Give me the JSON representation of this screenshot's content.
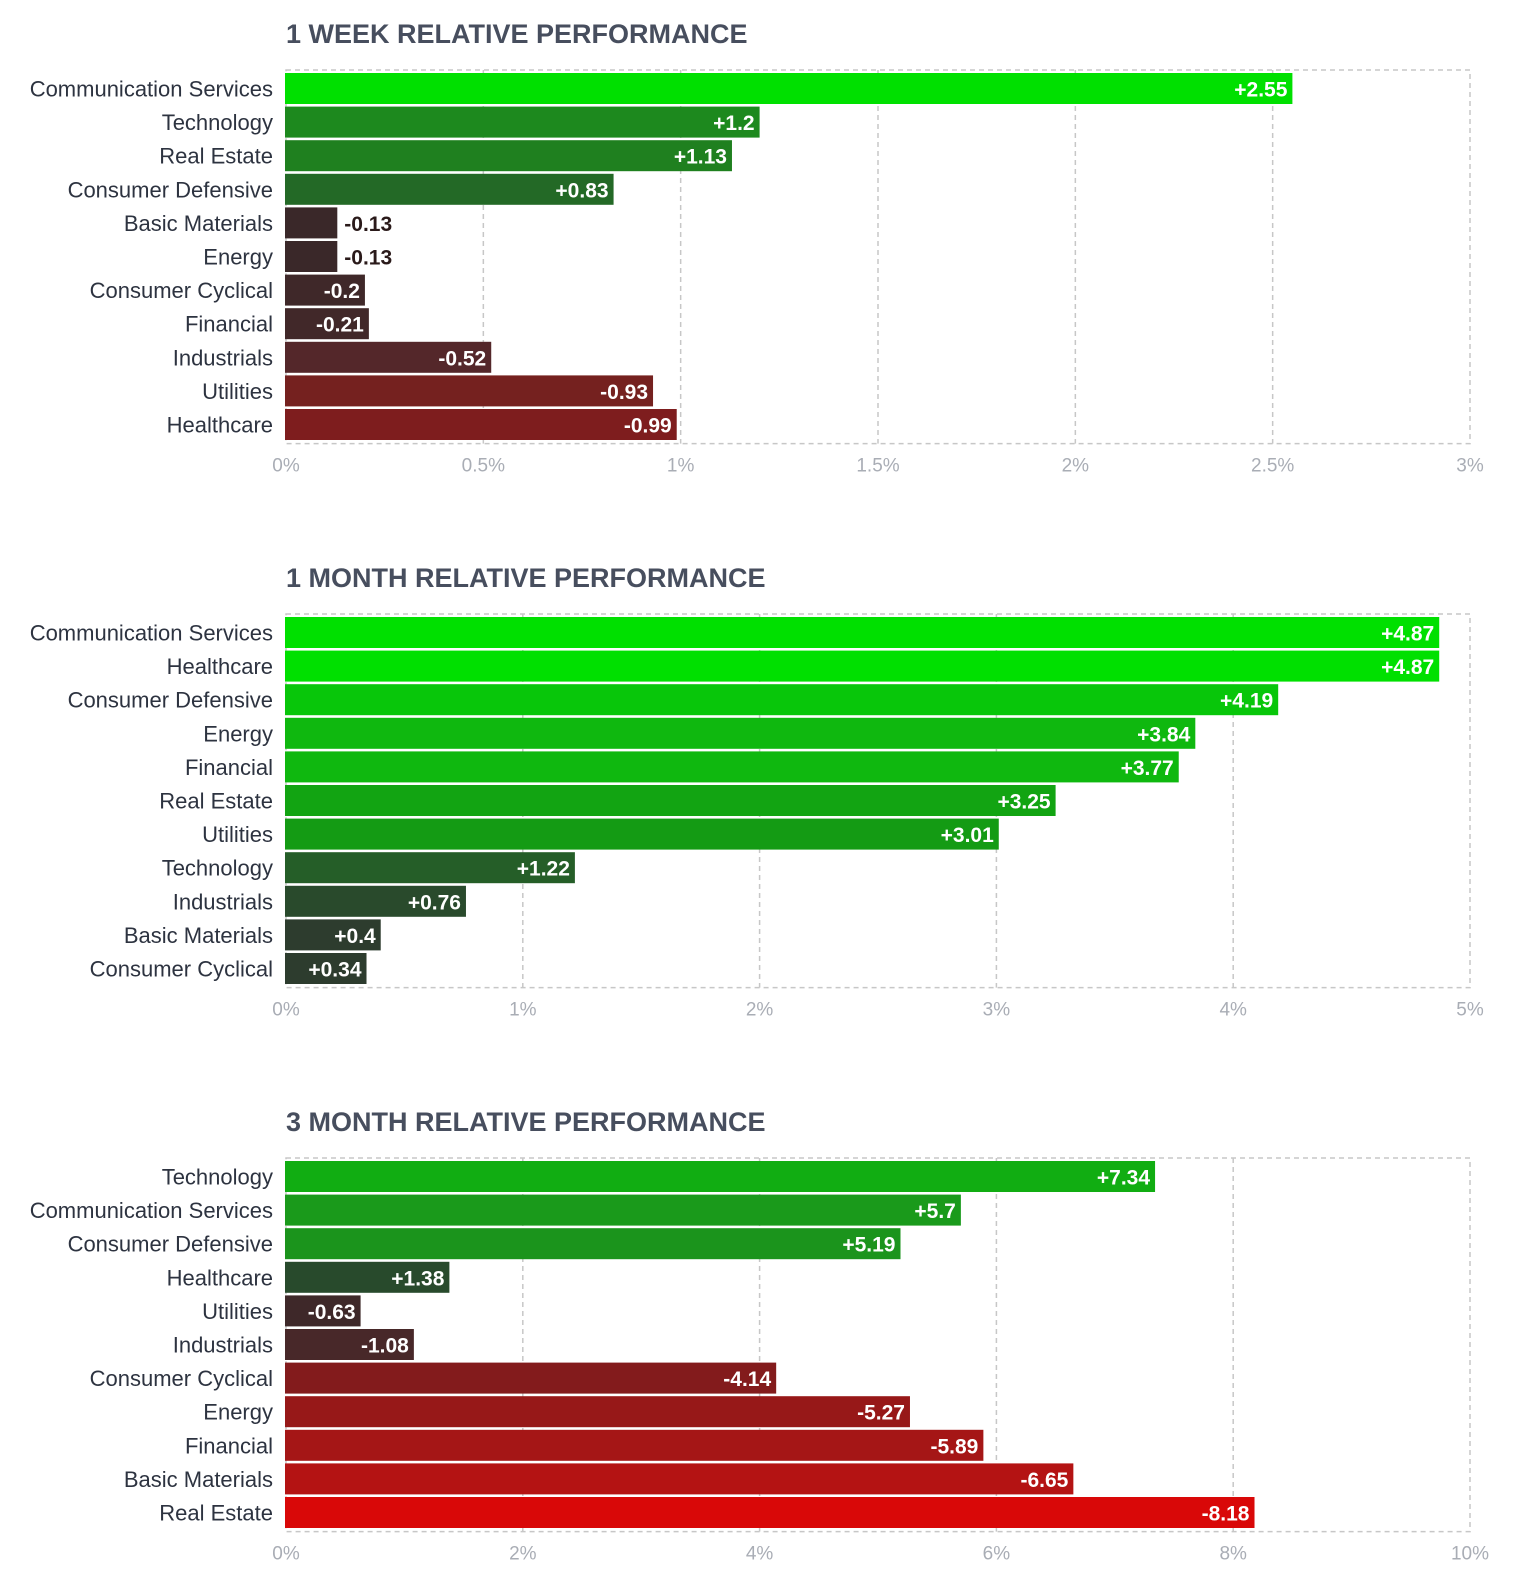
{
  "chart_data": [
    {
      "type": "bar",
      "orientation": "horizontal",
      "title": "1 WEEK RELATIVE PERFORMANCE",
      "xlim": [
        0,
        3
      ],
      "ticks": [
        0,
        0.5,
        1,
        1.5,
        2,
        2.5,
        3
      ],
      "tick_labels": [
        "0%",
        "0.5%",
        "1%",
        "1.5%",
        "2%",
        "2.5%",
        "3%"
      ],
      "grid": true,
      "categories": [
        "Communication Services",
        "Technology",
        "Real Estate",
        "Consumer Defensive",
        "Basic Materials",
        "Energy",
        "Consumer Cyclical",
        "Financial",
        "Industrials",
        "Utilities",
        "Healthcare"
      ],
      "values": [
        2.55,
        1.2,
        1.13,
        0.83,
        -0.13,
        -0.13,
        -0.2,
        -0.21,
        -0.52,
        -0.93,
        -0.99
      ],
      "value_labels": [
        "+2.55",
        "+1.2",
        "+1.13",
        "+0.83",
        "-0.13",
        "-0.13",
        "-0.2",
        "-0.21",
        "-0.52",
        "-0.93",
        "-0.99"
      ],
      "bar_colors": [
        "#00e000",
        "#1d891e",
        "#1f801f",
        "#236926",
        "#3a2829",
        "#3a2829",
        "#3f2829",
        "#412829",
        "#54272a",
        "#75211f",
        "#7e1d1e"
      ]
    },
    {
      "type": "bar",
      "orientation": "horizontal",
      "title": "1 MONTH RELATIVE PERFORMANCE",
      "xlim": [
        0,
        5
      ],
      "ticks": [
        0,
        1,
        2,
        3,
        4,
        5
      ],
      "tick_labels": [
        "0%",
        "1%",
        "2%",
        "3%",
        "4%",
        "5%"
      ],
      "grid": true,
      "categories": [
        "Communication Services",
        "Healthcare",
        "Consumer Defensive",
        "Energy",
        "Financial",
        "Real Estate",
        "Utilities",
        "Technology",
        "Industrials",
        "Basic Materials",
        "Consumer Cyclical"
      ],
      "values": [
        4.87,
        4.87,
        4.19,
        3.84,
        3.77,
        3.25,
        3.01,
        1.22,
        0.76,
        0.4,
        0.34
      ],
      "value_labels": [
        "+4.87",
        "+4.87",
        "+4.19",
        "+3.84",
        "+3.77",
        "+3.25",
        "+3.01",
        "+1.22",
        "+0.76",
        "+0.4",
        "+0.34"
      ],
      "bar_colors": [
        "#00e000",
        "#00e000",
        "#08c60a",
        "#0fb80f",
        "#0fb80f",
        "#12a412",
        "#149b14",
        "#255e28",
        "#294a2c",
        "#2d3c2e",
        "#2d3c2e"
      ]
    },
    {
      "type": "bar",
      "orientation": "horizontal",
      "title": "3 MONTH RELATIVE PERFORMANCE",
      "xlim": [
        0,
        10
      ],
      "ticks": [
        0,
        2,
        4,
        6,
        8,
        10
      ],
      "tick_labels": [
        "0%",
        "2%",
        "4%",
        "6%",
        "8%",
        "10%"
      ],
      "grid": true,
      "categories": [
        "Technology",
        "Communication Services",
        "Consumer Defensive",
        "Healthcare",
        "Utilities",
        "Industrials",
        "Consumer Cyclical",
        "Energy",
        "Financial",
        "Basic Materials",
        "Real Estate"
      ],
      "values": [
        7.34,
        5.7,
        5.19,
        1.38,
        -0.63,
        -1.08,
        -4.14,
        -5.27,
        -5.89,
        -6.65,
        -8.18
      ],
      "value_labels": [
        "+7.34",
        "+5.7",
        "+5.19",
        "+1.38",
        "-0.63",
        "-1.08",
        "-4.14",
        "-5.27",
        "-5.89",
        "-6.65",
        "-8.18"
      ],
      "bar_colors": [
        "#11ad12",
        "#1a9a1b",
        "#1b941c",
        "#284a2c",
        "#3e2829",
        "#482829",
        "#831b1c",
        "#971818",
        "#a51616",
        "#b41313",
        "#d90808"
      ]
    }
  ]
}
